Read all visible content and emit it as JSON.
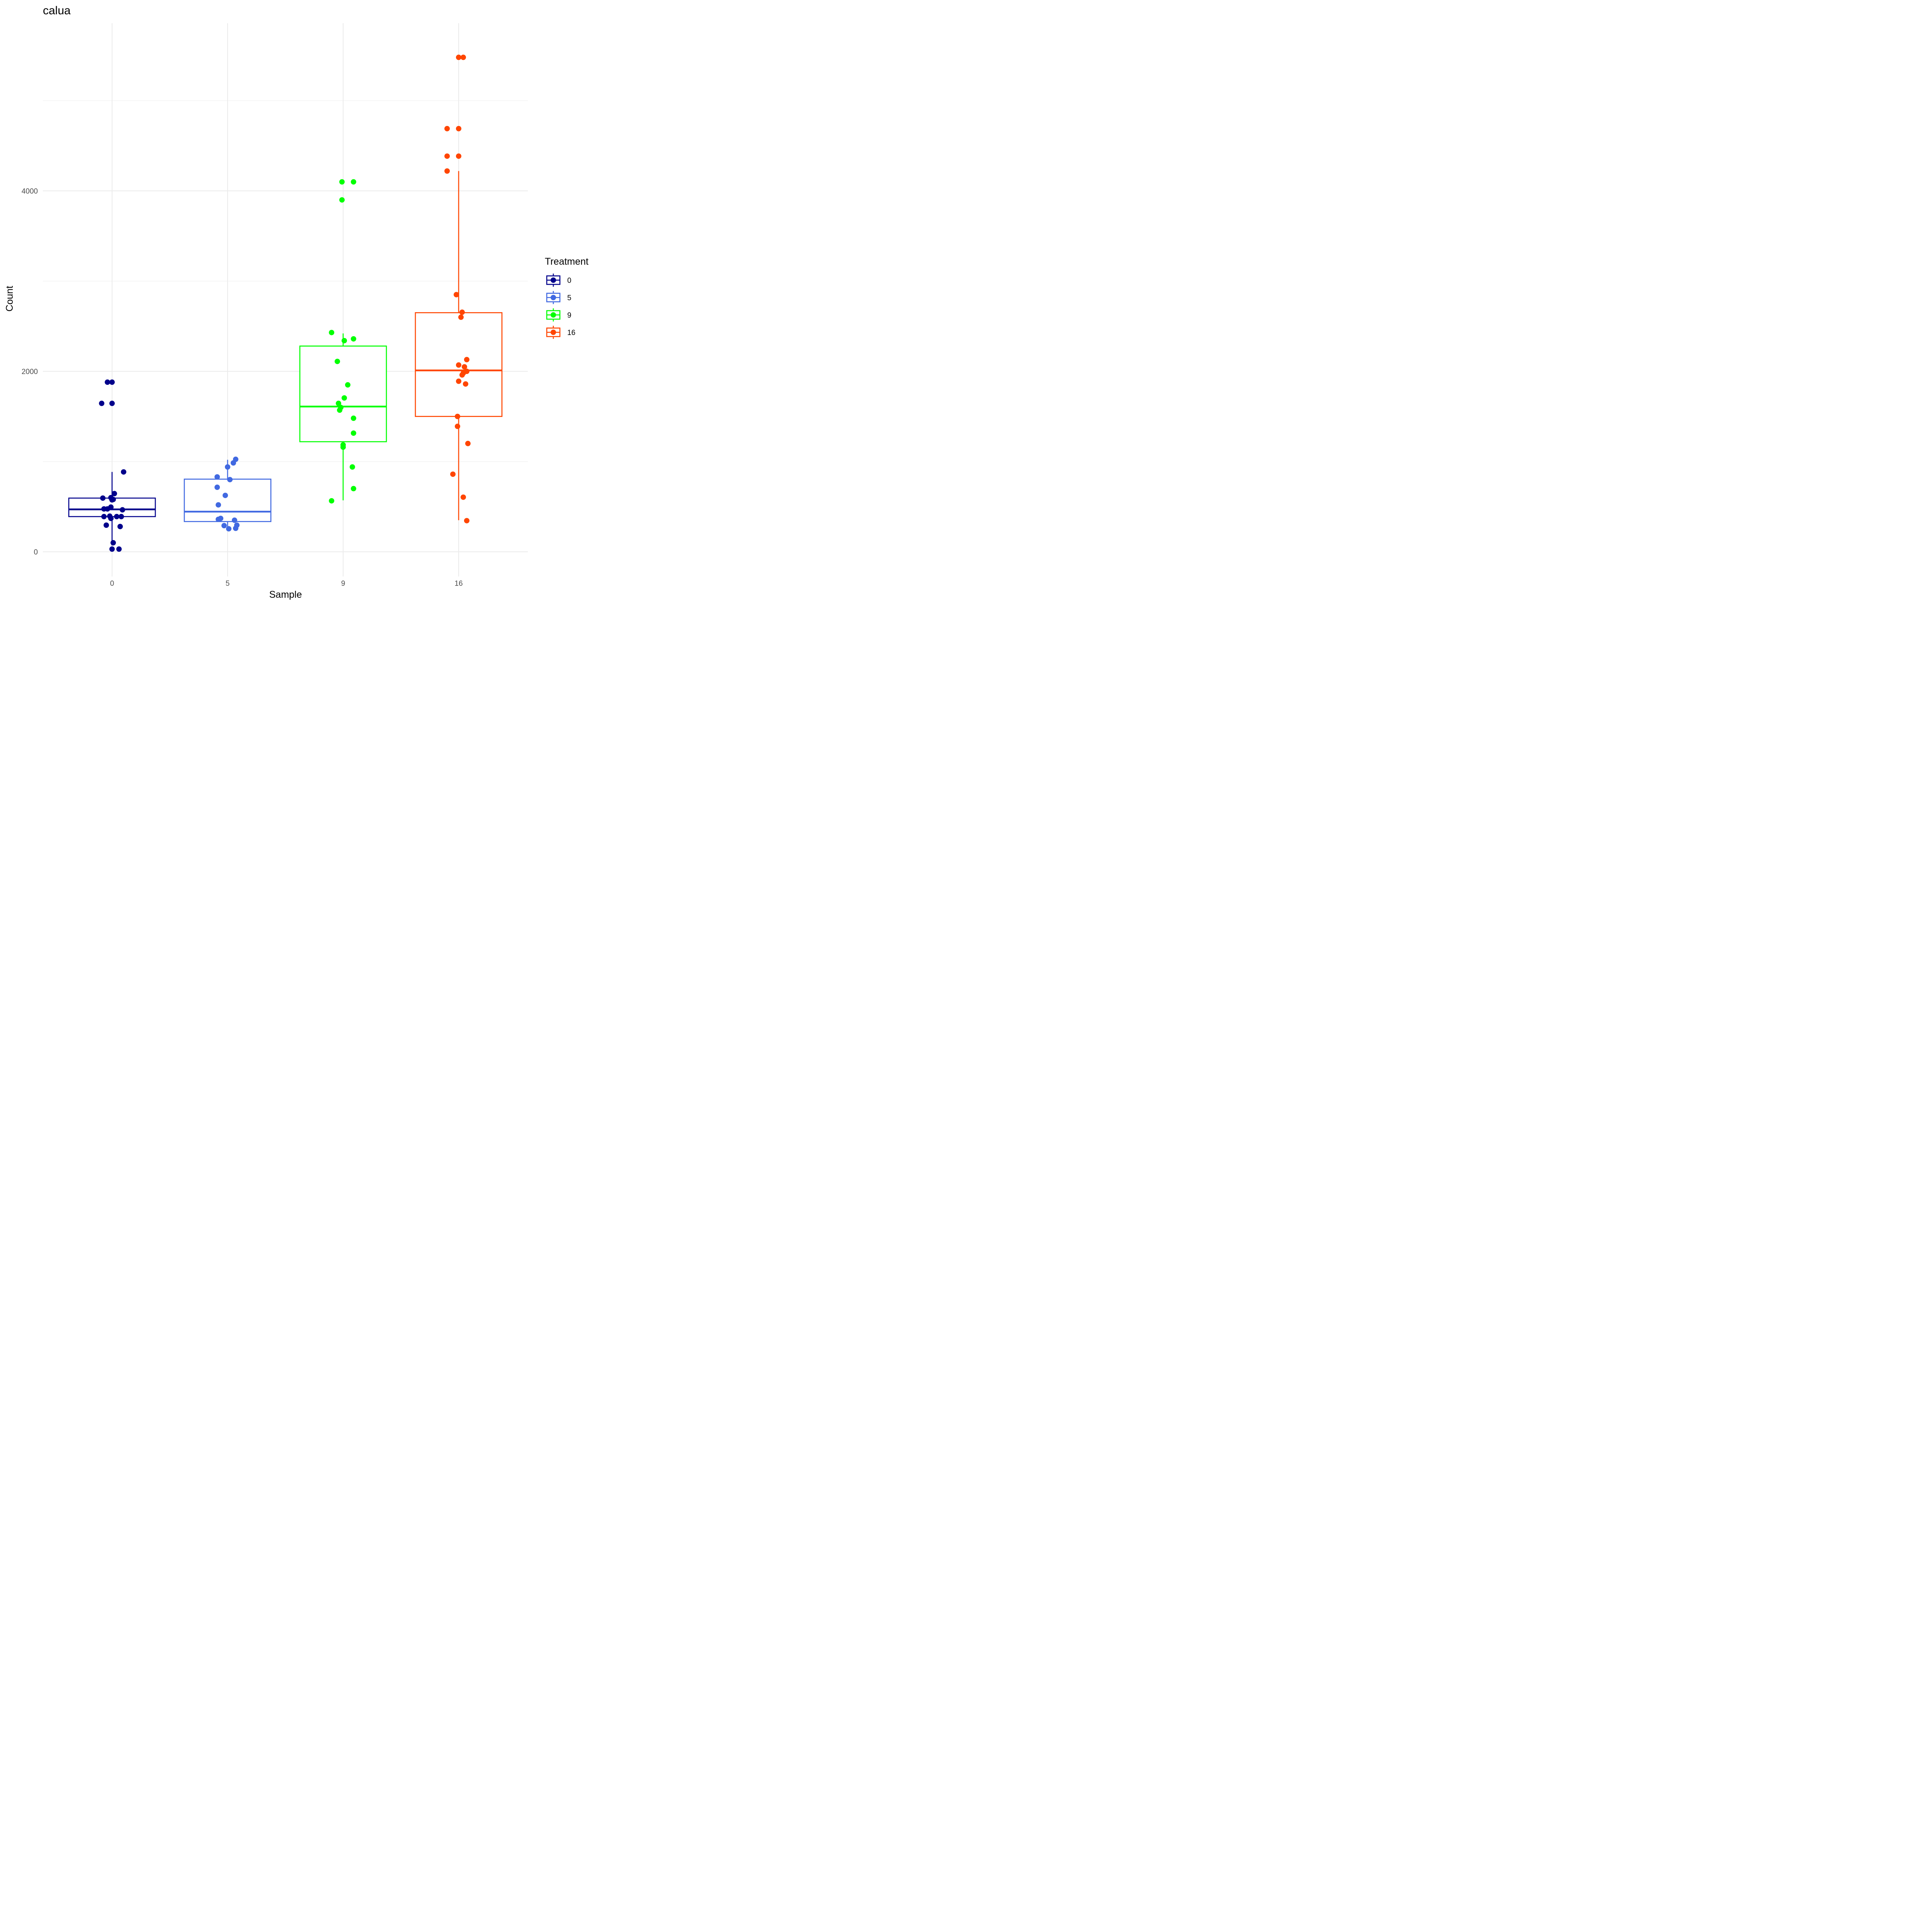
{
  "chart_data": {
    "type": "box",
    "title": "calua",
    "xlabel": "Sample",
    "ylabel": "Count",
    "categories": [
      "0",
      "5",
      "9",
      "16"
    ],
    "ylim": [
      -300,
      5860
    ],
    "yticks": [
      0,
      2000,
      4000
    ],
    "legend": {
      "title": "Treatment",
      "position": "right"
    },
    "groups": [
      {
        "name": "0",
        "color": "#00008B",
        "box": {
          "whisker_low": 70,
          "q1": 390,
          "median": 470,
          "q3": 595,
          "whisker_high": 885
        },
        "points": [
          [
            -0.04,
            1880
          ],
          [
            0.0,
            1880
          ],
          [
            -0.09,
            1645
          ],
          [
            0.0,
            1645
          ],
          [
            0.1,
            885
          ],
          [
            0.02,
            645
          ],
          [
            -0.08,
            595
          ],
          [
            -0.01,
            600
          ],
          [
            0.0,
            575
          ],
          [
            0.01,
            580
          ],
          [
            -0.01,
            495
          ],
          [
            -0.07,
            475
          ],
          [
            -0.04,
            475
          ],
          [
            0.09,
            465
          ],
          [
            -0.07,
            390
          ],
          [
            -0.02,
            395
          ],
          [
            0.04,
            390
          ],
          [
            0.08,
            390
          ],
          [
            -0.01,
            370
          ],
          [
            -0.05,
            295
          ],
          [
            0.07,
            280
          ],
          [
            0.01,
            100
          ],
          [
            0.06,
            30
          ],
          [
            0.0,
            30
          ]
        ]
      },
      {
        "name": "5",
        "color": "#4169E1",
        "box": {
          "whisker_low": 270,
          "q1": 335,
          "median": 445,
          "q3": 805,
          "whisker_high": 1020
        },
        "points": [
          [
            0.07,
            1025
          ],
          [
            0.05,
            985
          ],
          [
            0.0,
            940
          ],
          [
            -0.09,
            830
          ],
          [
            0.02,
            800
          ],
          [
            -0.09,
            715
          ],
          [
            -0.02,
            625
          ],
          [
            -0.08,
            520
          ],
          [
            -0.06,
            370
          ],
          [
            -0.08,
            360
          ],
          [
            0.06,
            350
          ],
          [
            -0.03,
            290
          ],
          [
            0.08,
            295
          ],
          [
            0.01,
            255
          ],
          [
            0.07,
            260
          ]
        ]
      },
      {
        "name": "9",
        "color": "#00FF00",
        "box": {
          "whisker_low": 570,
          "q1": 1220,
          "median": 1610,
          "q3": 2280,
          "whisker_high": 2420
        },
        "points": [
          [
            -0.01,
            4100
          ],
          [
            0.09,
            4100
          ],
          [
            -0.01,
            3900
          ],
          [
            -0.1,
            2430
          ],
          [
            0.09,
            2360
          ],
          [
            0.01,
            2340
          ],
          [
            -0.05,
            2110
          ],
          [
            0.04,
            1850
          ],
          [
            0.01,
            1705
          ],
          [
            -0.04,
            1645
          ],
          [
            -0.02,
            1600
          ],
          [
            -0.03,
            1570
          ],
          [
            0.09,
            1480
          ],
          [
            0.09,
            1315
          ],
          [
            0.0,
            1185
          ],
          [
            0.0,
            1160
          ],
          [
            0.08,
            940
          ],
          [
            0.09,
            700
          ],
          [
            -0.1,
            565
          ]
        ]
      },
      {
        "name": "16",
        "color": "#FF4500",
        "box": {
          "whisker_low": 350,
          "q1": 1500,
          "median": 2010,
          "q3": 2650,
          "whisker_high": 4220
        },
        "points": [
          [
            0.0,
            5480
          ],
          [
            0.04,
            5480
          ],
          [
            -0.1,
            4690
          ],
          [
            0.0,
            4690
          ],
          [
            -0.1,
            4385
          ],
          [
            0.0,
            4385
          ],
          [
            -0.1,
            4220
          ],
          [
            -0.02,
            2850
          ],
          [
            0.03,
            2655
          ],
          [
            0.02,
            2600
          ],
          [
            0.07,
            2130
          ],
          [
            0.0,
            2070
          ],
          [
            0.05,
            2050
          ],
          [
            0.07,
            2000
          ],
          [
            0.04,
            1980
          ],
          [
            0.03,
            1960
          ],
          [
            0.0,
            1890
          ],
          [
            0.06,
            1860
          ],
          [
            -0.01,
            1500
          ],
          [
            -0.01,
            1390
          ],
          [
            0.08,
            1200
          ],
          [
            -0.05,
            860
          ],
          [
            0.04,
            605
          ],
          [
            0.07,
            345
          ]
        ]
      }
    ]
  }
}
